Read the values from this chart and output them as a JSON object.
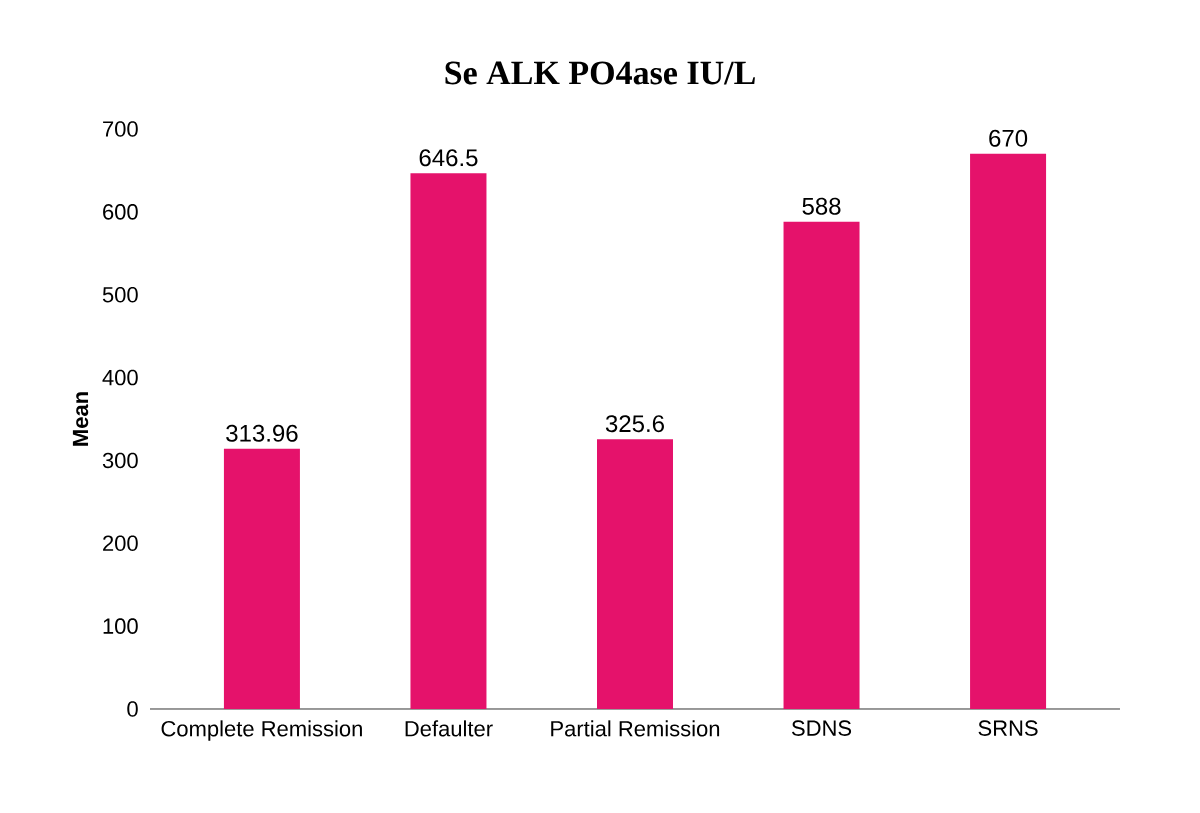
{
  "chart_data": {
    "type": "bar",
    "title": "Se ALK PO4ase IU/L",
    "ylabel": "Mean",
    "categories": [
      "Complete  Remission",
      "Defaulter",
      "Partial Remission",
      "SDNS",
      "SRNS"
    ],
    "values": [
      313.96,
      646.5,
      325.6,
      588,
      670
    ],
    "color": "#e5126b",
    "ylim": [
      0,
      700
    ],
    "yticks": [
      0,
      100,
      200,
      300,
      400,
      500,
      600,
      700
    ],
    "data_labels": true
  }
}
